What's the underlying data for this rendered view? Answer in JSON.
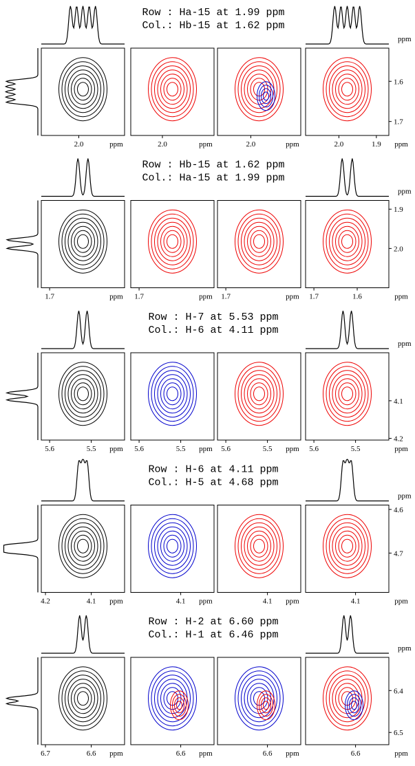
{
  "blocks": [
    {
      "row": "Row : Ha-15 at 1.99 ppm",
      "col": "Col.: Hb-15 at 1.62 ppm",
      "panels": [
        {
          "x_ticks": [
            "2.0"
          ],
          "unit": "ppm"
        },
        {
          "x_ticks": [
            "2.0"
          ],
          "unit": "ppm"
        },
        {
          "x_ticks": [
            "2.0"
          ],
          "unit": "ppm"
        },
        {
          "x_ticks": [
            "2.0",
            "1.9"
          ],
          "unit": "ppm"
        }
      ],
      "y_ticks": [
        "1.6",
        "1.7"
      ],
      "y_unit": "ppm"
    },
    {
      "row": "Row : Hb-15 at 1.62 ppm",
      "col": "Col.: Ha-15 at 1.99 ppm",
      "panels": [
        {
          "x_ticks": [
            "1.7"
          ],
          "unit": "ppm"
        },
        {
          "x_ticks": [
            "1.7"
          ],
          "unit": "ppm"
        },
        {
          "x_ticks": [
            "1.7"
          ],
          "unit": "ppm"
        },
        {
          "x_ticks": [
            "1.7",
            "1.6"
          ],
          "unit": "ppm"
        }
      ],
      "y_ticks": [
        "1.9",
        "2.0"
      ],
      "y_unit": "ppm"
    },
    {
      "row": "Row : H-7 at 5.53 ppm",
      "col": "Col.: H-6 at 4.11 ppm",
      "panels": [
        {
          "x_ticks": [
            "5.6",
            "5.5"
          ],
          "unit": "ppm"
        },
        {
          "x_ticks": [
            "5.6",
            "5.5"
          ],
          "unit": "ppm"
        },
        {
          "x_ticks": [
            "5.6",
            "5.5"
          ],
          "unit": "ppm"
        },
        {
          "x_ticks": [
            "5.6",
            "5.5"
          ],
          "unit": "ppm"
        }
      ],
      "y_ticks": [
        "4.1",
        "4.2"
      ],
      "y_unit": "ppm"
    },
    {
      "row": "Row : H-6 at 4.11 ppm",
      "col": "Col.: H-5 at 4.68 ppm",
      "panels": [
        {
          "x_ticks": [
            "4.2",
            "4.1"
          ],
          "unit": "ppm"
        },
        {
          "x_ticks": [
            "4.1"
          ],
          "unit": "ppm"
        },
        {
          "x_ticks": [
            "4.1"
          ],
          "unit": "ppm"
        },
        {
          "x_ticks": [
            "4.1"
          ],
          "unit": "ppm"
        }
      ],
      "y_ticks": [
        "4.6",
        "4.7"
      ],
      "y_unit": "ppm"
    },
    {
      "row": "Row : H-2 at 6.60 ppm",
      "col": "Col.: H-1 at 6.46 ppm",
      "panels": [
        {
          "x_ticks": [
            "6.7",
            "6.6"
          ],
          "unit": "ppm"
        },
        {
          "x_ticks": [
            "6.6"
          ],
          "unit": "ppm"
        },
        {
          "x_ticks": [
            "6.6"
          ],
          "unit": "ppm"
        },
        {
          "x_ticks": [
            "6.6"
          ],
          "unit": "ppm"
        }
      ],
      "y_ticks": [
        "6.4",
        "6.5"
      ],
      "y_unit": "ppm"
    }
  ]
}
